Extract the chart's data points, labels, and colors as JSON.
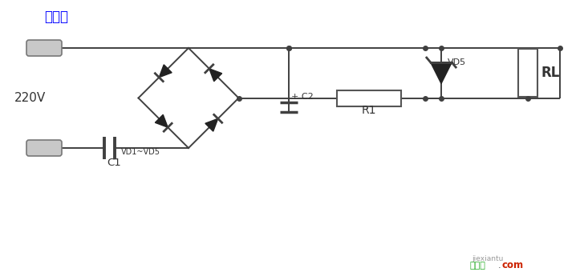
{
  "title": "电路二",
  "title_color": "#0000ff",
  "title_fontsize": 12,
  "bg_color": "#ffffff",
  "line_color": "#404040",
  "label_220v": "220V",
  "label_c1": "C1",
  "label_c2": "+ C2",
  "label_r1": "R1",
  "label_rl": "RL",
  "label_vd15": "VD1~VD5",
  "label_vd5": "VD5",
  "watermark_green": "接线图",
  "watermark_dot": ".",
  "watermark_red": "com",
  "watermark2": "jiexiantu"
}
